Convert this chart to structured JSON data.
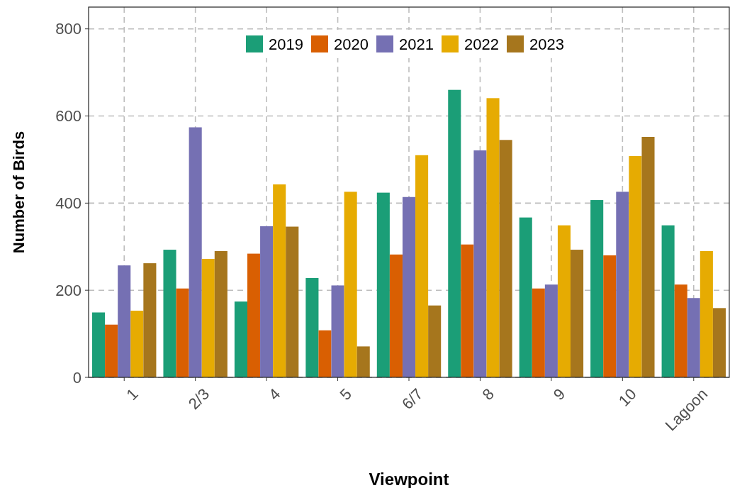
{
  "chart_data": {
    "type": "bar",
    "xlabel": "Viewpoint",
    "ylabel": "Number of Birds",
    "categories": [
      "1",
      "2/3",
      "4",
      "5",
      "6/7",
      "8",
      "9",
      "10",
      "Lagoon"
    ],
    "series": [
      {
        "name": "2019",
        "color": "#1b9e77",
        "values": [
          149,
          293,
          174,
          228,
          424,
          660,
          367,
          407,
          349
        ]
      },
      {
        "name": "2020",
        "color": "#d95f02",
        "values": [
          121,
          204,
          284,
          108,
          282,
          305,
          204,
          280,
          213
        ]
      },
      {
        "name": "2021",
        "color": "#7570b3",
        "values": [
          257,
          574,
          347,
          211,
          414,
          521,
          213,
          426,
          182
        ]
      },
      {
        "name": "2022",
        "color": "#e6ab02",
        "values": [
          153,
          272,
          443,
          426,
          510,
          641,
          349,
          508,
          290
        ]
      },
      {
        "name": "2023",
        "color": "#a6761d",
        "values": [
          262,
          290,
          346,
          71,
          165,
          545,
          293,
          552,
          159
        ]
      }
    ],
    "ylim": [
      0,
      850
    ],
    "yticks": [
      0,
      200,
      400,
      600,
      800
    ],
    "grid": true,
    "legend": "top"
  }
}
